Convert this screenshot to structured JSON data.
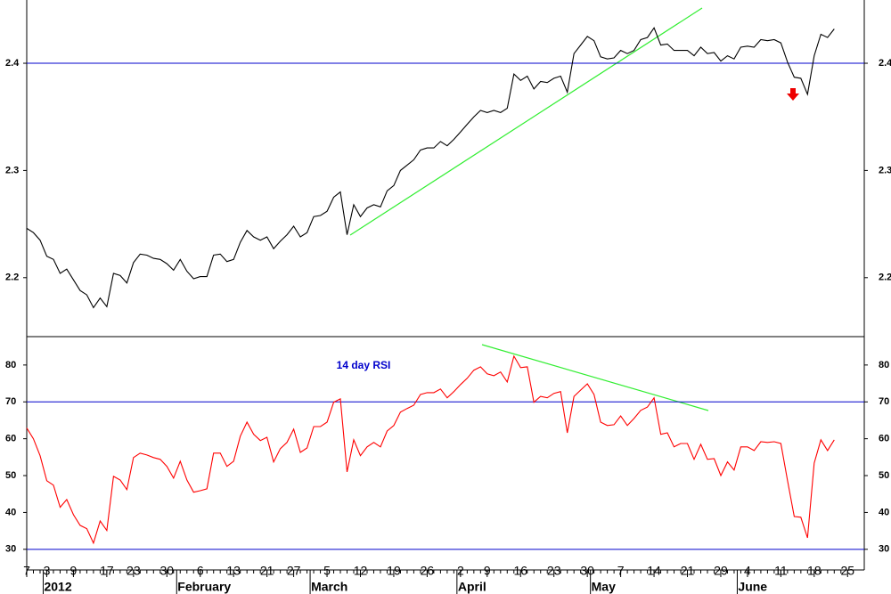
{
  "x_axis": {
    "categories": [
      "7",
      null,
      null,
      "3",
      null,
      null,
      null,
      "9",
      null,
      null,
      null,
      null,
      "17",
      null,
      null,
      null,
      "23",
      null,
      null,
      null,
      null,
      "30",
      null,
      null,
      null,
      null,
      "6",
      null,
      null,
      null,
      null,
      "13",
      null,
      null,
      null,
      null,
      "21",
      null,
      null,
      null,
      "27",
      null,
      null,
      null,
      null,
      "5",
      null,
      null,
      null,
      null,
      "12",
      null,
      null,
      null,
      null,
      "19",
      null,
      null,
      null,
      null,
      "26",
      null,
      null,
      null,
      null,
      "2",
      null,
      null,
      null,
      "9",
      null,
      null,
      null,
      null,
      "16",
      null,
      null,
      null,
      null,
      "23",
      null,
      null,
      null,
      null,
      "30",
      null,
      null,
      null,
      null,
      "7",
      null,
      null,
      null,
      null,
      "14",
      null,
      null,
      null,
      null,
      "21",
      null,
      null,
      null,
      null,
      "29",
      null,
      null,
      null,
      "4",
      null,
      null,
      null,
      null,
      "11",
      null,
      null,
      null,
      null,
      "18",
      null,
      null,
      null,
      null,
      "25"
    ],
    "groups": [
      null,
      null,
      null,
      "2012",
      null,
      null,
      null,
      null,
      null,
      null,
      null,
      null,
      null,
      null,
      null,
      null,
      null,
      null,
      null,
      null,
      null,
      null,
      null,
      "February",
      null,
      null,
      null,
      null,
      null,
      null,
      null,
      null,
      null,
      null,
      null,
      null,
      null,
      null,
      null,
      null,
      null,
      null,
      null,
      "March",
      null,
      null,
      null,
      null,
      null,
      null,
      null,
      null,
      null,
      null,
      null,
      null,
      null,
      null,
      null,
      null,
      null,
      null,
      null,
      null,
      null,
      "April",
      null,
      null,
      null,
      null,
      null,
      null,
      null,
      null,
      null,
      null,
      null,
      null,
      null,
      null,
      null,
      null,
      null,
      null,
      null,
      "May",
      null,
      null,
      null,
      null,
      null,
      null,
      null,
      null,
      null,
      null,
      null,
      null,
      null,
      null,
      null,
      null,
      null,
      null,
      null,
      null,
      null,
      "June",
      null,
      null,
      null,
      null,
      null,
      null,
      null,
      null,
      null,
      null,
      null,
      null,
      null,
      null,
      null,
      null
    ]
  },
  "chart_data": [
    {
      "type": "line",
      "color": "#000000",
      "ylim": [
        2.145,
        2.459
      ],
      "yticks": [
        2.2,
        2.3,
        2.4
      ],
      "hlines": [
        2.4
      ],
      "hline_color": "#0000cc",
      "values": [
        2.246,
        2.242,
        2.235,
        2.22,
        2.217,
        2.204,
        2.208,
        2.198,
        2.188,
        2.184,
        2.172,
        2.181,
        2.173,
        2.204,
        2.202,
        2.195,
        2.214,
        2.222,
        2.221,
        2.218,
        2.217,
        2.213,
        2.207,
        2.217,
        2.206,
        2.199,
        2.201,
        2.201,
        2.221,
        2.222,
        2.215,
        2.217,
        2.233,
        2.244,
        2.238,
        2.235,
        2.238,
        2.227,
        2.234,
        2.24,
        2.248,
        2.238,
        2.242,
        2.257,
        2.258,
        2.262,
        2.275,
        2.28,
        2.24,
        2.268,
        2.257,
        2.265,
        2.268,
        2.266,
        2.281,
        2.286,
        2.3,
        2.305,
        2.31,
        2.319,
        2.321,
        2.321,
        2.327,
        2.323,
        2.329,
        2.336,
        2.343,
        2.35,
        2.356,
        2.354,
        2.356,
        2.354,
        2.358,
        2.39,
        2.384,
        2.388,
        2.376,
        2.383,
        2.382,
        2.386,
        2.388,
        2.373,
        2.409,
        2.417,
        2.425,
        2.421,
        2.406,
        2.404,
        2.405,
        2.412,
        2.409,
        2.412,
        2.422,
        2.424,
        2.433,
        2.417,
        2.418,
        2.412,
        2.412,
        2.412,
        2.407,
        2.415,
        2.409,
        2.41,
        2.402,
        2.407,
        2.404,
        2.415,
        2.416,
        2.415,
        2.422,
        2.421,
        2.422,
        2.419,
        2.401,
        2.387,
        2.386,
        2.371,
        2.407,
        2.427,
        2.424,
        2.432,
        null,
        null
      ]
    },
    {
      "type": "line",
      "color": "#ff0000",
      "title": "14 day RSI",
      "ylim": [
        24.4,
        87.7
      ],
      "yticks": [
        30,
        40,
        50,
        60,
        70,
        80
      ],
      "hlines": [
        70,
        30
      ],
      "hline_color": "#0000cc",
      "values": [
        62.9,
        60,
        55.4,
        48.6,
        47.4,
        41.4,
        43.5,
        39.4,
        36.5,
        35.6,
        31.7,
        37.7,
        35.1,
        49.8,
        48.8,
        46.2,
        54.9,
        56.1,
        55.6,
        54.9,
        54.4,
        52.5,
        49.3,
        53.9,
        48.8,
        45.5,
        45.9,
        46.4,
        56.1,
        56.1,
        52.5,
        53.9,
        60.7,
        64.5,
        61.2,
        59.5,
        60.4,
        53.7,
        57.3,
        59,
        62.6,
        56.3,
        57.5,
        63.3,
        63.3,
        64.5,
        69.9,
        70.8,
        51,
        59.7,
        55.4,
        57.8,
        59,
        57.8,
        62.1,
        63.6,
        67.2,
        68.2,
        69.1,
        72,
        72.5,
        72.5,
        73.5,
        71.1,
        72.8,
        74.7,
        76.4,
        78.6,
        79.5,
        77.6,
        77.1,
        78.1,
        75.4,
        82.4,
        79.3,
        79.5,
        69.9,
        71.5,
        71.1,
        72.3,
        72.8,
        61.6,
        71.5,
        73.2,
        74.9,
        72,
        64.5,
        63.6,
        63.8,
        66.2,
        63.6,
        65.5,
        67.7,
        68.6,
        71.1,
        61.2,
        61.6,
        57.8,
        58.7,
        58.7,
        54.4,
        58.5,
        54.4,
        54.6,
        50,
        53.7,
        51.5,
        57.8,
        57.8,
        56.8,
        59.2,
        59,
        59.2,
        58.7,
        48.6,
        38.9,
        38.7,
        33.1,
        53.4,
        59.7,
        56.8,
        59.7,
        null,
        null
      ]
    }
  ]
}
